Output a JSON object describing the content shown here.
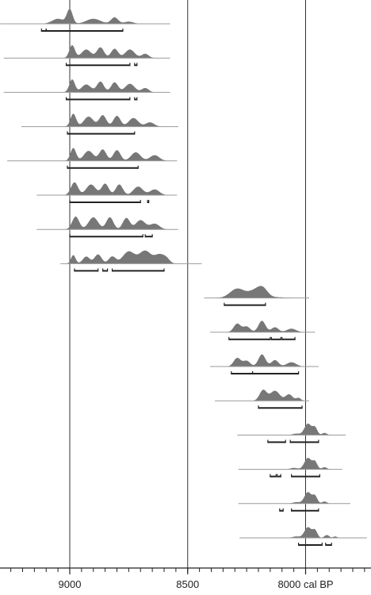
{
  "chart_data": {
    "type": "area",
    "title": "",
    "xlabel": "",
    "ylabel": "",
    "x_unit": "cal BP",
    "x_axis_reversed": true,
    "xlim": [
      9295,
      7740
    ],
    "major_ticks": [
      {
        "value": 9000,
        "label": "9000"
      },
      {
        "value": 8500,
        "label": "8500"
      },
      {
        "value": 8000,
        "label": "8000 cal BP"
      }
    ],
    "minor_tick_interval": 50,
    "reference_lines": [
      9000,
      8500,
      8000
    ],
    "fill_color": "#777777",
    "baseline_color": "#9a9a9a",
    "range_color": "#222222",
    "distributions": [
      {
        "baseline": [
          9295,
          8575
        ],
        "peaks": [
          [
            9000,
            1.0,
            12
          ],
          [
            9050,
            0.35,
            25
          ],
          [
            8900,
            0.35,
            30
          ],
          [
            8810,
            0.45,
            15
          ],
          [
            8750,
            0.15,
            20
          ]
        ],
        "ranges": [
          [
            9120,
            9100
          ],
          [
            9100,
            8775
          ]
        ]
      },
      {
        "baseline": [
          9280,
          8575
        ],
        "peaks": [
          [
            8990,
            0.9,
            12
          ],
          [
            8930,
            0.6,
            20
          ],
          [
            8870,
            0.75,
            15
          ],
          [
            8810,
            0.65,
            15
          ],
          [
            8745,
            0.6,
            20
          ],
          [
            8680,
            0.3,
            15
          ]
        ],
        "ranges": [
          [
            9015,
            8745
          ],
          [
            8725,
            8715
          ]
        ]
      },
      {
        "baseline": [
          9280,
          8575
        ],
        "peaks": [
          [
            8990,
            0.9,
            12
          ],
          [
            8930,
            0.55,
            20
          ],
          [
            8870,
            0.75,
            15
          ],
          [
            8810,
            0.7,
            15
          ],
          [
            8745,
            0.6,
            20
          ],
          [
            8680,
            0.3,
            15
          ]
        ],
        "ranges": [
          [
            9015,
            8745
          ],
          [
            8725,
            8715
          ]
        ]
      },
      {
        "baseline": [
          9205,
          8540
        ],
        "peaks": [
          [
            8985,
            0.9,
            12
          ],
          [
            8920,
            0.7,
            20
          ],
          [
            8860,
            0.8,
            15
          ],
          [
            8800,
            0.75,
            15
          ],
          [
            8730,
            0.6,
            20
          ],
          [
            8660,
            0.3,
            18
          ]
        ],
        "ranges": [
          [
            9010,
            8725
          ]
        ]
      },
      {
        "baseline": [
          9265,
          8545
        ],
        "peaks": [
          [
            8985,
            0.9,
            12
          ],
          [
            8920,
            0.7,
            20
          ],
          [
            8860,
            0.8,
            15
          ],
          [
            8800,
            0.75,
            15
          ],
          [
            8720,
            0.6,
            20
          ],
          [
            8640,
            0.4,
            20
          ]
        ],
        "ranges": [
          [
            9010,
            8710
          ]
        ]
      },
      {
        "baseline": [
          9140,
          8545
        ],
        "peaks": [
          [
            8980,
            0.9,
            15
          ],
          [
            8910,
            0.75,
            20
          ],
          [
            8850,
            0.8,
            15
          ],
          [
            8790,
            0.75,
            15
          ],
          [
            8710,
            0.6,
            20
          ],
          [
            8640,
            0.4,
            20
          ]
        ],
        "ranges": [
          [
            9000,
            8700
          ],
          [
            8670,
            8665
          ]
        ]
      },
      {
        "baseline": [
          9140,
          8540
        ],
        "peaks": [
          [
            8975,
            0.9,
            15
          ],
          [
            8900,
            0.85,
            20
          ],
          [
            8830,
            0.85,
            15
          ],
          [
            8760,
            0.8,
            15
          ],
          [
            8700,
            0.65,
            20
          ],
          [
            8640,
            0.4,
            20
          ]
        ],
        "ranges": [
          [
            9000,
            8690
          ],
          [
            8680,
            8650
          ]
        ]
      },
      {
        "baseline": [
          9040,
          8440
        ],
        "peaks": [
          [
            8985,
            0.6,
            10
          ],
          [
            8930,
            0.5,
            15
          ],
          [
            8880,
            0.65,
            15
          ],
          [
            8820,
            0.5,
            15
          ],
          [
            8750,
            0.85,
            25
          ],
          [
            8680,
            0.9,
            25
          ],
          [
            8620,
            0.6,
            20
          ],
          [
            8590,
            0.3,
            15
          ]
        ],
        "ranges": [
          [
            8980,
            8880
          ],
          [
            8860,
            8840
          ],
          [
            8820,
            8600
          ]
        ]
      },
      {
        "baseline": [
          8430,
          7985
        ],
        "peaks": [
          [
            8290,
            0.65,
            30
          ],
          [
            8210,
            0.55,
            30
          ],
          [
            8180,
            0.45,
            20
          ],
          [
            8120,
            0.05,
            30
          ]
        ],
        "ranges": [
          [
            8345,
            8170
          ]
        ]
      },
      {
        "baseline": [
          8405,
          7960
        ],
        "peaks": [
          [
            8290,
            0.6,
            15
          ],
          [
            8250,
            0.4,
            15
          ],
          [
            8185,
            0.8,
            15
          ],
          [
            8130,
            0.35,
            15
          ],
          [
            8060,
            0.25,
            20
          ]
        ],
        "ranges": [
          [
            8325,
            8150
          ],
          [
            8145,
            8105
          ],
          [
            8100,
            8045
          ]
        ]
      },
      {
        "baseline": [
          8405,
          7945
        ],
        "peaks": [
          [
            8290,
            0.6,
            15
          ],
          [
            8250,
            0.4,
            15
          ],
          [
            8185,
            0.85,
            15
          ],
          [
            8130,
            0.45,
            15
          ],
          [
            8060,
            0.3,
            20
          ]
        ],
        "ranges": [
          [
            8315,
            8225
          ],
          [
            8225,
            8030
          ]
        ]
      },
      {
        "baseline": [
          8385,
          7985
        ],
        "peaks": [
          [
            8180,
            0.75,
            15
          ],
          [
            8130,
            0.7,
            20
          ],
          [
            8070,
            0.45,
            15
          ],
          [
            8030,
            0.2,
            10
          ]
        ],
        "ranges": [
          [
            8200,
            8015
          ]
        ]
      },
      {
        "baseline": [
          8290,
          7830
        ],
        "peaks": [
          [
            8040,
            0.1,
            15
          ],
          [
            7990,
            0.8,
            15
          ],
          [
            7960,
            0.5,
            10
          ],
          [
            7920,
            0.15,
            10
          ]
        ],
        "ranges": [
          [
            8160,
            8085
          ],
          [
            8065,
            7945
          ]
        ]
      },
      {
        "baseline": [
          8285,
          7845
        ],
        "peaks": [
          [
            8050,
            0.1,
            15
          ],
          [
            7990,
            0.8,
            15
          ],
          [
            7960,
            0.5,
            10
          ],
          [
            7920,
            0.15,
            10
          ]
        ],
        "ranges": [
          [
            8150,
            8125
          ],
          [
            8120,
            8105
          ],
          [
            8060,
            7940
          ]
        ]
      },
      {
        "baseline": [
          8285,
          7810
        ],
        "peaks": [
          [
            8040,
            0.1,
            15
          ],
          [
            7990,
            0.8,
            15
          ],
          [
            7960,
            0.5,
            10
          ],
          [
            7920,
            0.15,
            10
          ]
        ],
        "ranges": [
          [
            8110,
            8095
          ],
          [
            8060,
            7945
          ]
        ]
      },
      {
        "baseline": [
          8280,
          7740
        ],
        "peaks": [
          [
            8040,
            0.1,
            15
          ],
          [
            7990,
            0.75,
            15
          ],
          [
            7960,
            0.5,
            10
          ],
          [
            7910,
            0.2,
            10
          ],
          [
            7875,
            0.1,
            8
          ]
        ],
        "ranges": [
          [
            8030,
            7930
          ],
          [
            7915,
            7890
          ]
        ]
      }
    ]
  }
}
